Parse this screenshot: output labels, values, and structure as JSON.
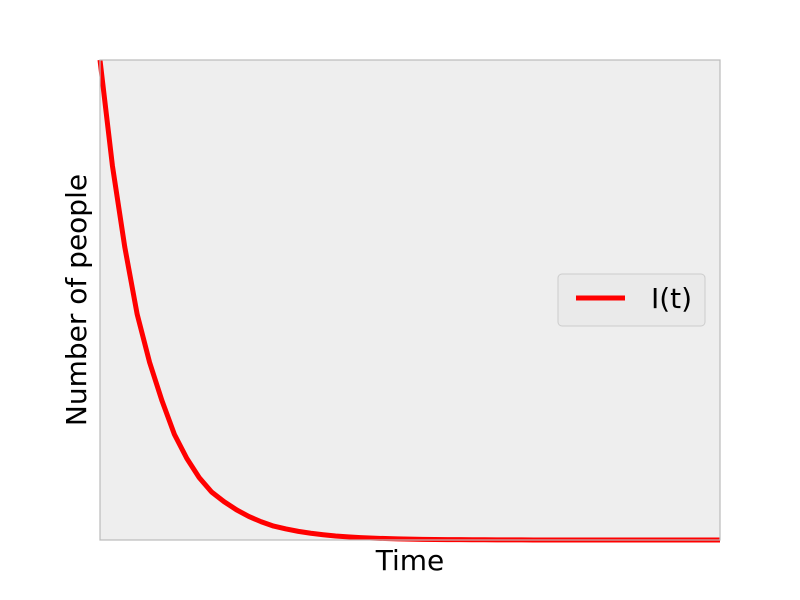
{
  "chart_data": {
    "type": "line",
    "title": "",
    "xlabel": "Time",
    "ylabel": "Number of people",
    "xlim": [
      0,
      50
    ],
    "ylim": [
      0,
      1
    ],
    "grid": false,
    "ticks_visible": false,
    "legend": {
      "placement": "center-right",
      "entries": [
        "I(t)"
      ]
    },
    "colors": {
      "plot_bg": "#eeeeee",
      "spine": "#bbbbbb",
      "legend_bg": "#eaeaea",
      "legend_border": "#cccccc"
    },
    "series": [
      {
        "name": "I(t)",
        "color": "#ff0000",
        "x": [
          0,
          1,
          2,
          3,
          4,
          5,
          6,
          7,
          8,
          9,
          10,
          11,
          12,
          13,
          14,
          15,
          16,
          17,
          18,
          19,
          20,
          21,
          22,
          23,
          24,
          25,
          26,
          27,
          28,
          29,
          30,
          31,
          32,
          33,
          34,
          35,
          36,
          37,
          38,
          39,
          40,
          41,
          42,
          43,
          44,
          45,
          46,
          47,
          48,
          49,
          50
        ],
        "y": [
          1.0,
          0.78,
          0.61,
          0.47,
          0.37,
          0.29,
          0.22,
          0.17,
          0.13,
          0.1,
          0.08,
          0.063,
          0.049,
          0.038,
          0.029,
          0.023,
          0.018,
          0.014,
          0.011,
          0.0083,
          0.0065,
          0.005,
          0.0039,
          0.003,
          0.0024,
          0.0018,
          0.0014,
          0.0011,
          0.0009,
          0.0007,
          0.0005,
          0.0004,
          0.0003,
          0.0002,
          0.0002,
          0.0001,
          0.0001,
          0.0001,
          0.0001,
          0.0,
          0.0,
          0.0,
          0.0,
          0.0,
          0.0,
          0.0,
          0.0,
          0.0,
          0.0,
          0.0,
          0.0
        ]
      }
    ]
  }
}
